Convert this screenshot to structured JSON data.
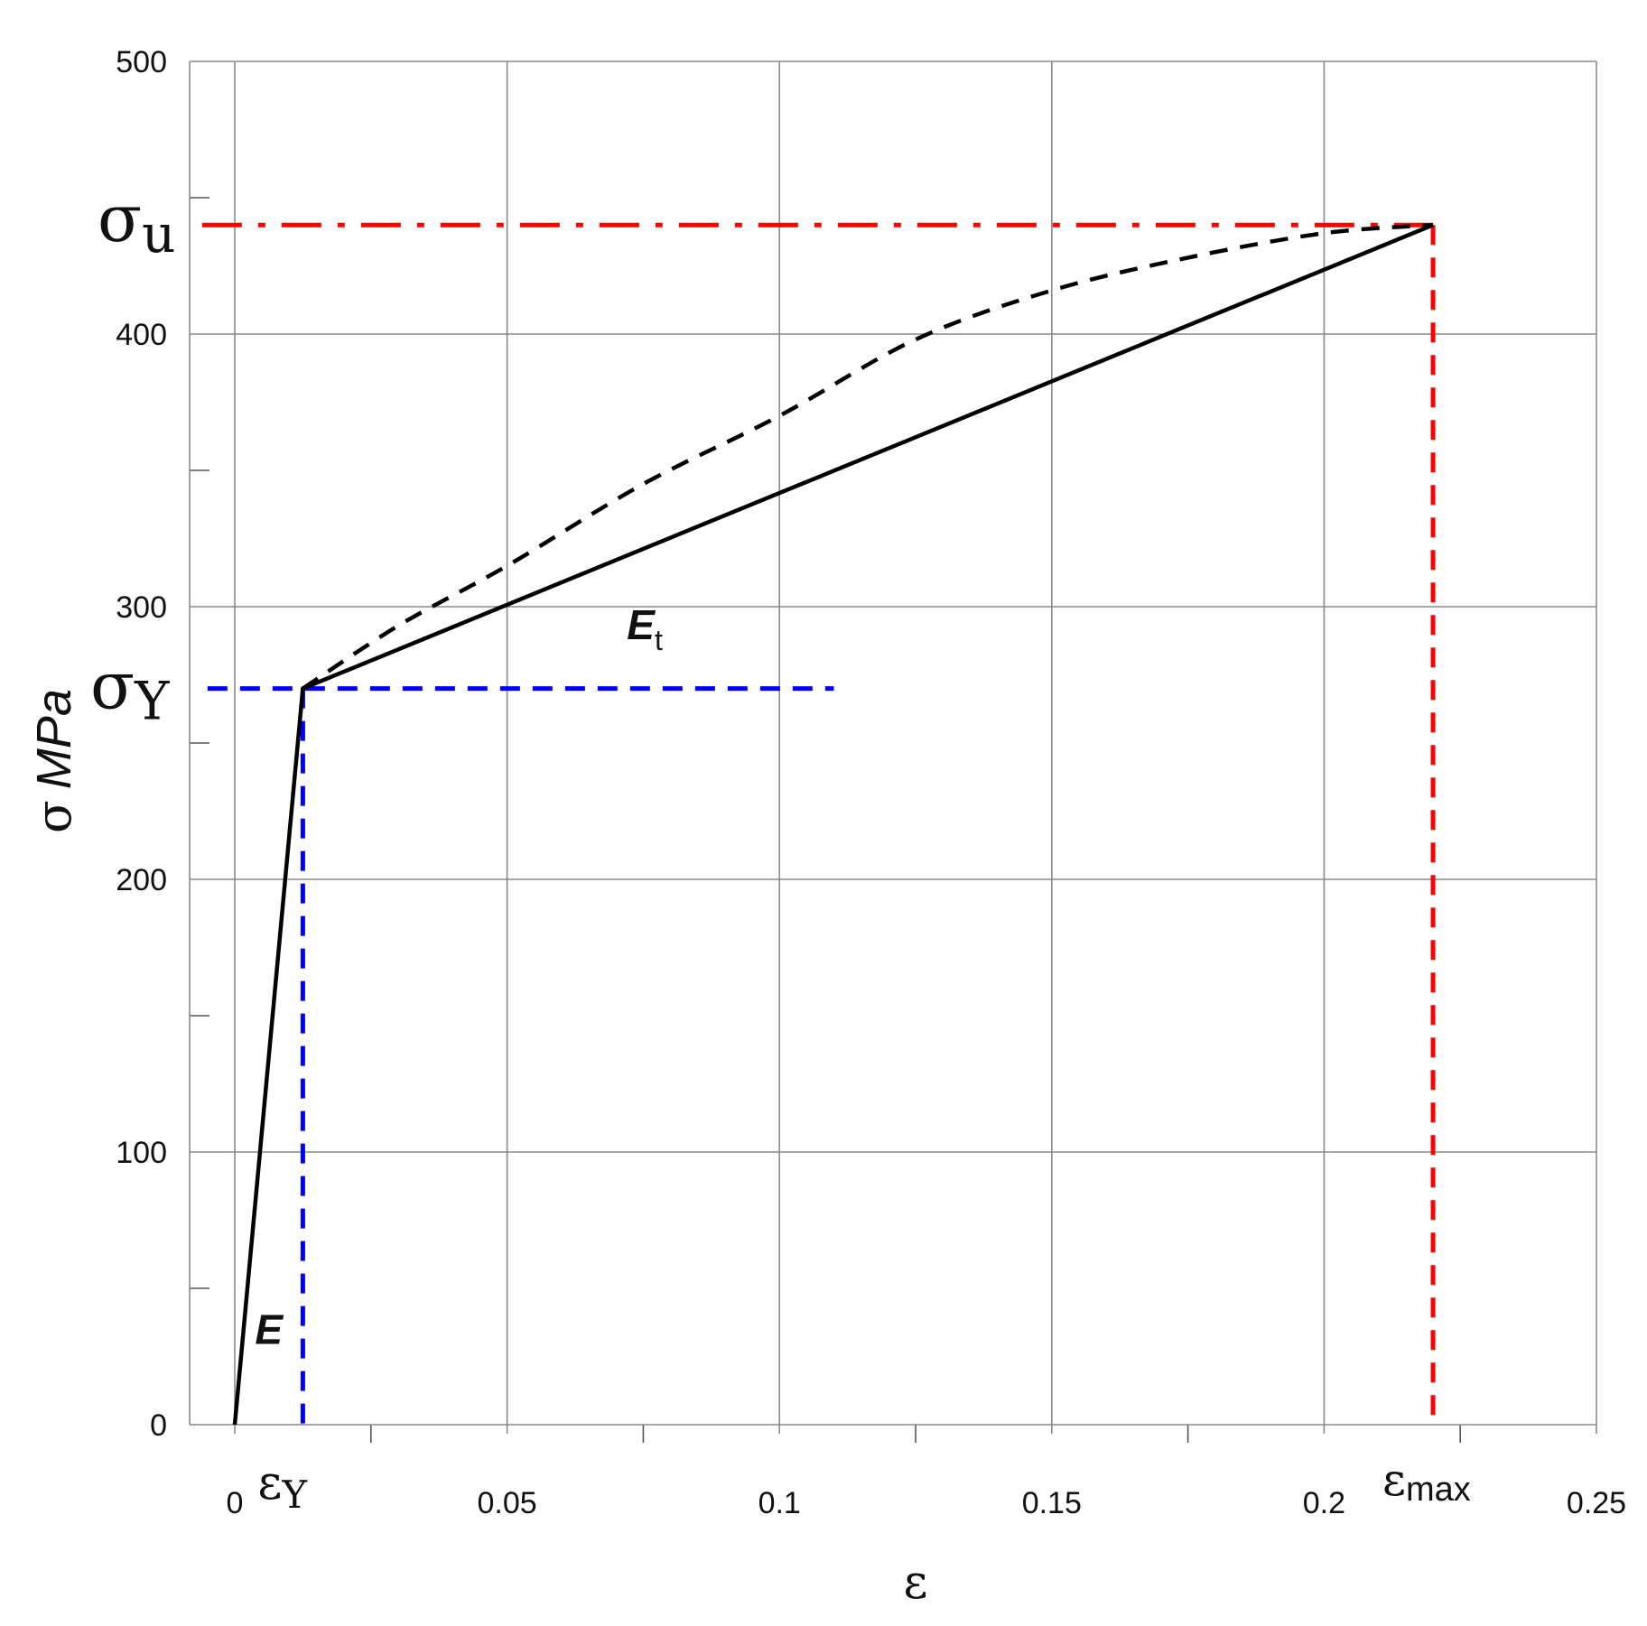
{
  "chart_data": {
    "type": "line",
    "xlabel": "ε",
    "ylabel_symbol": "σ",
    "ylabel_unit": "MPa",
    "xlim": [
      0,
      0.25
    ],
    "ylim": [
      0,
      500
    ],
    "grid": true,
    "x_ticks": [
      0,
      0.05,
      0.1,
      0.15,
      0.2,
      0.25
    ],
    "x_tick_labels": [
      "0",
      "0.05",
      "0.1",
      "0.15",
      "0.2",
      "0.25"
    ],
    "y_ticks": [
      0,
      100,
      200,
      300,
      400,
      500
    ],
    "y_tick_labels": [
      "0",
      "100",
      "200",
      "300",
      "400",
      "500"
    ],
    "series": [
      {
        "style": "solid",
        "color": "#000000",
        "x": [
          0,
          0.0125,
          0.22
        ],
        "y": [
          0,
          270,
          440
        ]
      },
      {
        "style": "dashed",
        "color": "#000000",
        "x": [
          0.0125,
          0.03,
          0.05,
          0.075,
          0.1,
          0.125,
          0.15,
          0.175,
          0.2,
          0.22
        ],
        "y": [
          270,
          293,
          315,
          345,
          370,
          398,
          416,
          428,
          437,
          440
        ]
      }
    ],
    "reference_lines": [
      {
        "color": "#ff0000",
        "style": "dashdot",
        "x": [
          -0.006,
          0.22
        ],
        "y": [
          440,
          440
        ]
      },
      {
        "color": "#ff0000",
        "style": "dashed",
        "x": [
          0.22,
          0.22
        ],
        "y": [
          440,
          0
        ]
      },
      {
        "color": "#0000ff",
        "style": "dashed",
        "x": [
          -0.005,
          0.11
        ],
        "y": [
          270,
          270
        ]
      },
      {
        "color": "#0000ff",
        "style": "dashed",
        "x": [
          0.0125,
          0.0125
        ],
        "y": [
          270,
          0
        ]
      }
    ],
    "annotations": {
      "sigma_u": {
        "symbol": "σ",
        "sub": "u",
        "y": 440
      },
      "sigma_y": {
        "symbol": "σ",
        "sub": "Y",
        "y": 270
      },
      "eps_y": {
        "symbol": "ε",
        "sub": "Y",
        "x": 0.0125
      },
      "eps_max": {
        "symbol": "ε",
        "sub": "max",
        "x": 0.22
      },
      "e_t": {
        "main": "E",
        "sub": "t",
        "x": 0.072,
        "y": 288
      },
      "e": {
        "main": "E",
        "x": 0.012,
        "y": 35
      }
    }
  }
}
